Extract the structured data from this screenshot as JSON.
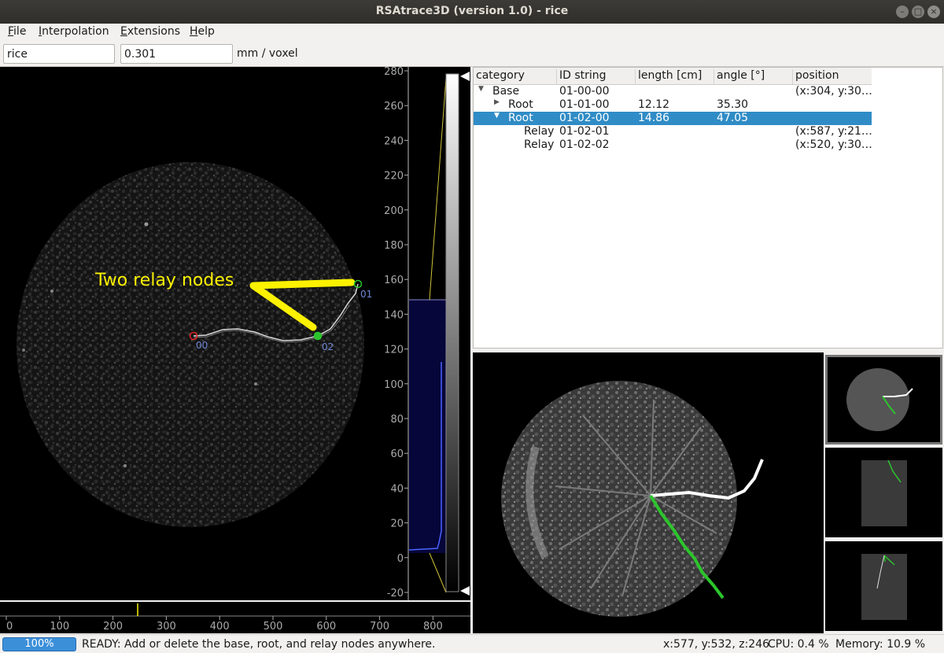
{
  "window": {
    "title": "RSAtrace3D (version 1.0) - rice"
  },
  "menu": [
    {
      "label": "File",
      "mnemonic": "F",
      "rest": "ile"
    },
    {
      "label": "Interpolation",
      "mnemonic": "I",
      "rest": "nterpolation"
    },
    {
      "label": "Extensions",
      "mnemonic": "E",
      "rest": "xtensions"
    },
    {
      "label": "Help",
      "mnemonic": "H",
      "rest": "elp"
    }
  ],
  "toolbar": {
    "name_value": "rice",
    "voxel_value": "0.301",
    "unit_label": "mm / voxel"
  },
  "slice_view": {
    "annotation": "Two relay nodes",
    "nodes": [
      {
        "label": "00",
        "color": "#e02020"
      },
      {
        "label": "01",
        "color": "#2cc52c"
      },
      {
        "label": "02",
        "color": "#2cc52c"
      }
    ],
    "histogram_ticks": [
      "280",
      "260",
      "240",
      "220",
      "200",
      "180",
      "160",
      "140",
      "120",
      "100",
      "80",
      "60",
      "40",
      "20",
      "0",
      "-20"
    ],
    "x_ticks": [
      "0",
      "100",
      "200",
      "300",
      "400",
      "500",
      "600",
      "700",
      "800"
    ]
  },
  "tree": {
    "headers": [
      "category",
      "ID string",
      "length [cm]",
      "angle [°]",
      "position"
    ],
    "rows": [
      {
        "arrow": "down",
        "indent": 0,
        "category": "Base",
        "id": "01-00-00",
        "length": "",
        "angle": "",
        "position": "(x:304, y:30…",
        "selected": false
      },
      {
        "arrow": "right",
        "indent": 1,
        "category": "Root",
        "id": "01-01-00",
        "length": "12.12",
        "angle": "35.30",
        "position": "",
        "selected": false
      },
      {
        "arrow": "down",
        "indent": 1,
        "category": "Root",
        "id": "01-02-00",
        "length": "14.86",
        "angle": "47.05",
        "position": "",
        "selected": true
      },
      {
        "arrow": "",
        "indent": 2,
        "category": "Relay",
        "id": "01-02-01",
        "length": "",
        "angle": "",
        "position": "(x:587, y:21…",
        "selected": false
      },
      {
        "arrow": "",
        "indent": 2,
        "category": "Relay",
        "id": "01-02-02",
        "length": "",
        "angle": "",
        "position": "(x:520, y:30…",
        "selected": false
      }
    ]
  },
  "status": {
    "progress": "100%",
    "progress_fraction": 1.0,
    "message": "READY: Add or delete the base, root, and relay nodes anywhere.",
    "coords": "x:577, y:532, z:246",
    "cpu": "CPU: 0.4 %",
    "memory": "Memory: 10.9 %"
  },
  "colors": {
    "selection": "#308cc6",
    "annotation": "#fbf100",
    "root_trace": "#2cc52c"
  }
}
